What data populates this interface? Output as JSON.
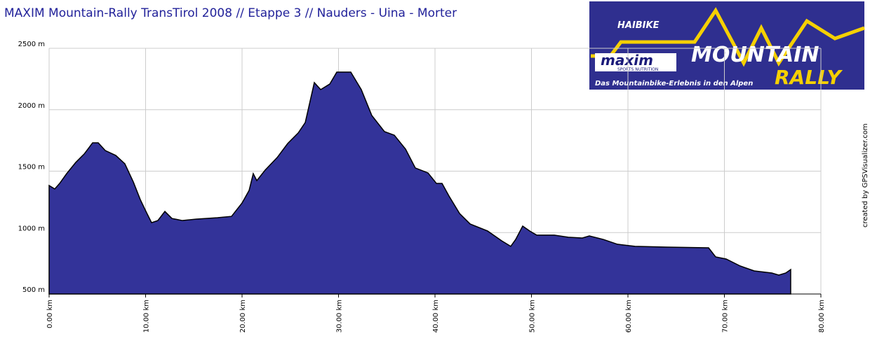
{
  "chart_data": {
    "type": "area",
    "title": "MAXIM Mountain-Rally TransTirol 2008 // Etappe 3 // Nauders - Uina - Morter",
    "credit": "created by GPSVisualizer.com",
    "color": "#333399",
    "grid": true,
    "x": [
      0,
      0.58,
      1.09,
      1.82,
      2.76,
      3.64,
      4.51,
      5.09,
      5.82,
      6.91,
      7.85,
      8.73,
      9.45,
      10.04,
      10.62,
      11.27,
      12.0,
      12.73,
      13.82,
      15.27,
      17.45,
      18.91,
      20.0,
      20.73,
      21.16,
      21.53,
      22.4,
      23.64,
      24.73,
      25.82,
      26.55,
      27.49,
      28.15,
      29.09,
      29.82,
      31.27,
      32.36,
      33.45,
      34.76,
      35.78,
      36.95,
      37.96,
      39.27,
      40.15,
      40.73,
      41.45,
      42.55,
      43.64,
      45.45,
      46.91,
      47.85,
      48.36,
      49.09,
      49.82,
      50.55,
      52.36,
      53.82,
      55.27,
      56.0,
      57.45,
      58.91,
      60.73,
      64.0,
      68.36,
      69.09,
      70.18,
      71.64,
      73.09,
      74.91,
      75.64,
      76.36,
      76.87
    ],
    "values": [
      1383,
      1355,
      1400,
      1480,
      1571,
      1640,
      1731,
      1731,
      1668,
      1628,
      1560,
      1412,
      1269,
      1172,
      1081,
      1098,
      1172,
      1115,
      1098,
      1110,
      1121,
      1132,
      1241,
      1343,
      1480,
      1423,
      1509,
      1611,
      1725,
      1811,
      1896,
      2221,
      2164,
      2209,
      2306,
      2306,
      2164,
      1953,
      1822,
      1793,
      1679,
      1526,
      1486,
      1400,
      1400,
      1298,
      1155,
      1070,
      1013,
      933,
      888,
      944,
      1053,
      1013,
      979,
      979,
      962,
      956,
      973,
      944,
      905,
      888,
      882,
      876,
      802,
      785,
      728,
      688,
      671,
      654,
      671,
      699
    ],
    "xlim": [
      0,
      80
    ],
    "xticks": [
      {
        "value": 0,
        "label": "0.00 km"
      },
      {
        "value": 10,
        "label": "10.00 km"
      },
      {
        "value": 20,
        "label": "20.00 km"
      },
      {
        "value": 30,
        "label": "30.00 km"
      },
      {
        "value": 40,
        "label": "40.00 km"
      },
      {
        "value": 50,
        "label": "50.00 km"
      },
      {
        "value": 60,
        "label": "60.00 km"
      },
      {
        "value": 70,
        "label": "70.00 km"
      },
      {
        "value": 80,
        "label": "80.00 km"
      }
    ],
    "ylim": [
      500,
      2500
    ],
    "yticks": [
      {
        "value": 500,
        "label": "500 m"
      },
      {
        "value": 1000,
        "label": "1000 m"
      },
      {
        "value": 1500,
        "label": "1500 m"
      },
      {
        "value": 2000,
        "label": "2000 m"
      },
      {
        "value": 2500,
        "label": "2500 m"
      }
    ]
  },
  "logo": {
    "brand": "HAIBIKE",
    "sponsor": "maxim",
    "sponsor_tagline": "SPORTS NUTRITION",
    "word1": "MOUNTAIN",
    "word2": "RALLY",
    "slogan": "Das Mountainbike-Erlebnis in den Alpen"
  }
}
